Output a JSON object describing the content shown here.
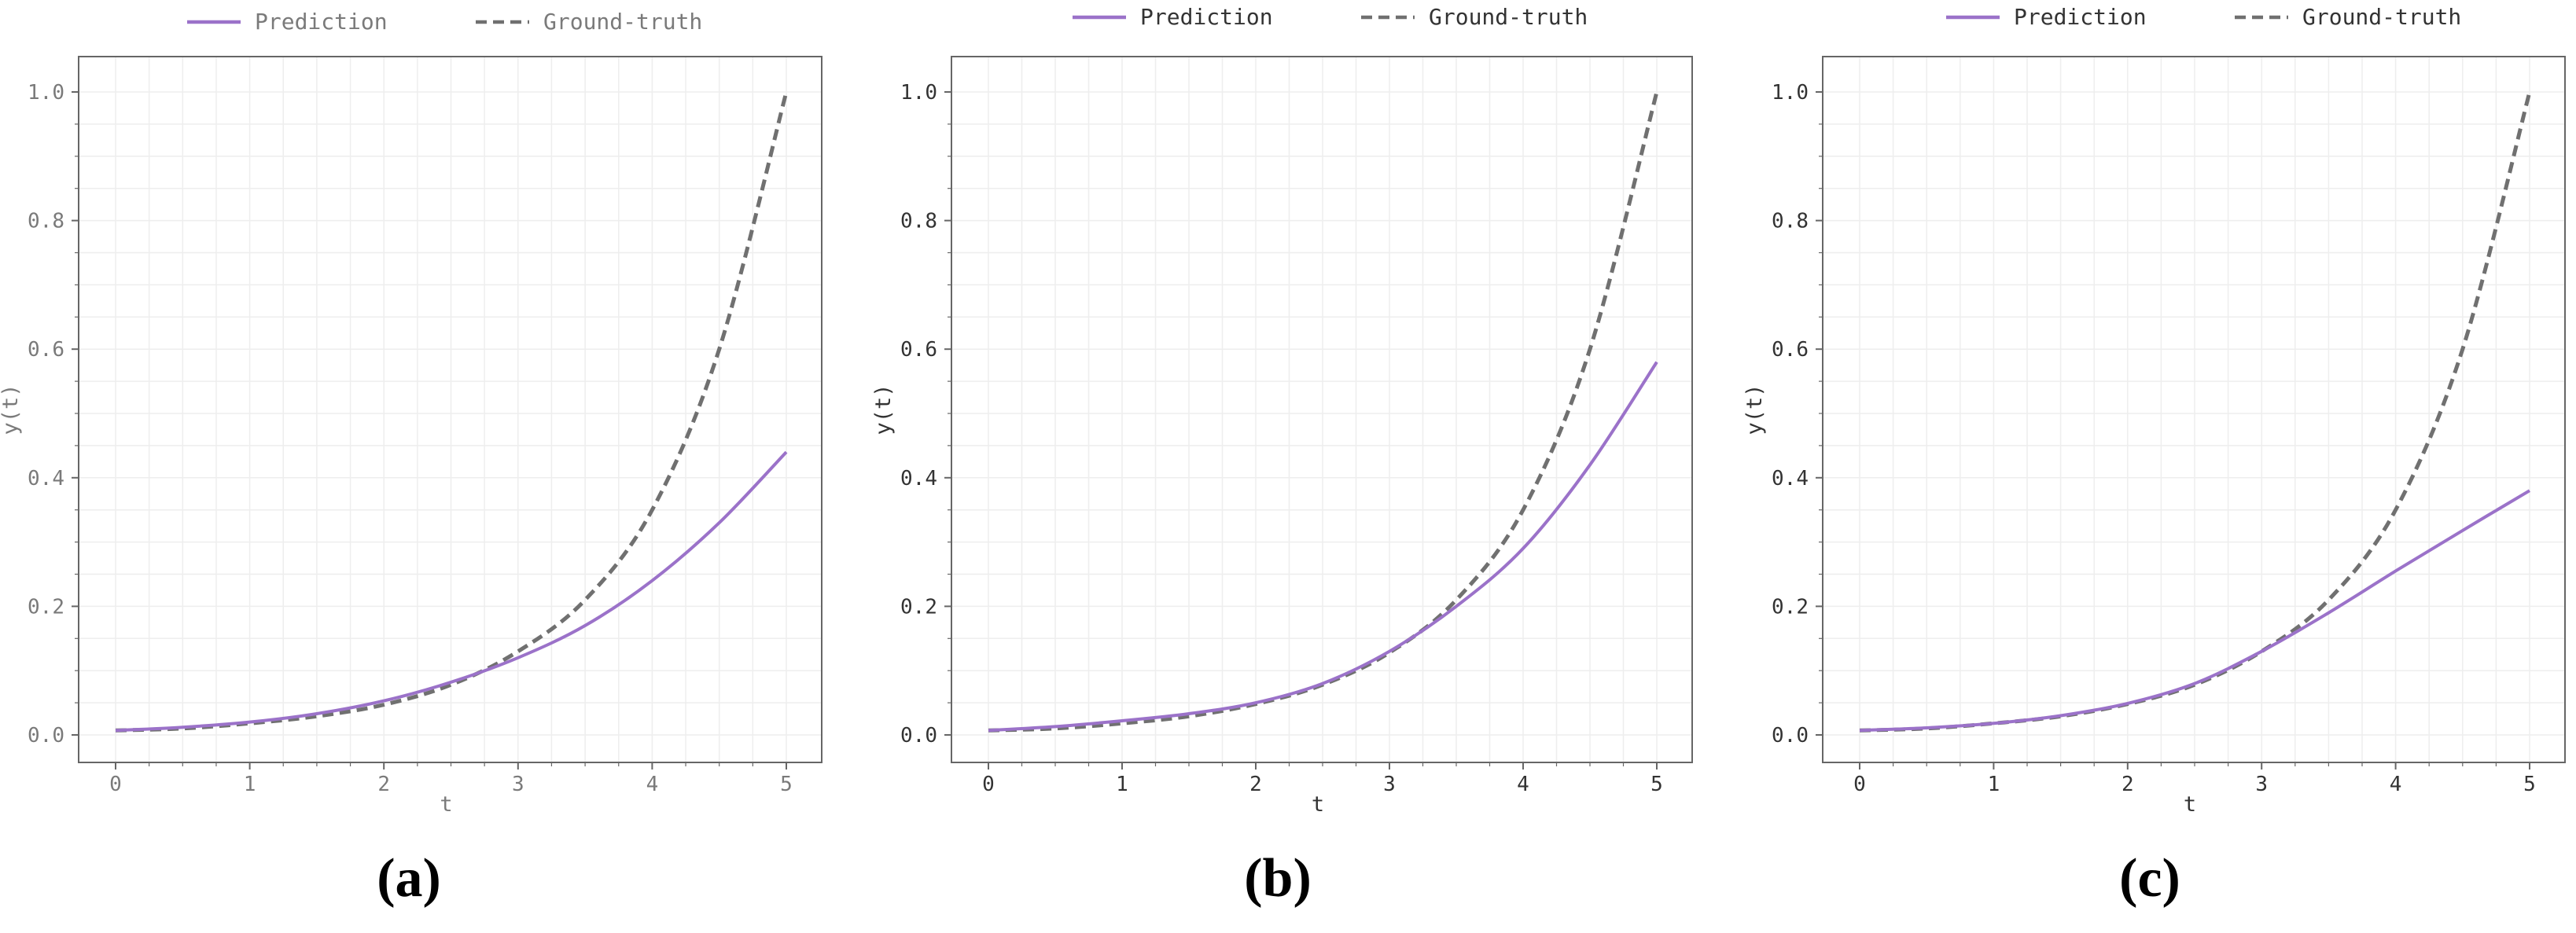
{
  "colors": {
    "prediction": "#9b72c9",
    "ground_truth": "#707070",
    "grid": "#eeeeee",
    "frame": "#666666"
  },
  "chart_data": [
    {
      "type": "line",
      "caption": "(a)",
      "xlabel": "t",
      "ylabel": "y(t)",
      "xlim": [
        0,
        5
      ],
      "ylim": [
        0,
        1.0
      ],
      "xticks": [
        "0",
        "1",
        "2",
        "3",
        "4",
        "5"
      ],
      "yticks": [
        "0.0",
        "0.2",
        "0.4",
        "0.6",
        "0.8",
        "1.0"
      ],
      "grid": true,
      "legend_position": "top",
      "x": [
        0,
        0.5,
        1,
        1.5,
        2,
        2.5,
        3,
        3.5,
        4,
        4.5,
        5
      ],
      "series": [
        {
          "name": "Prediction",
          "style": "solid",
          "values": [
            0.007,
            0.012,
            0.02,
            0.033,
            0.053,
            0.082,
            0.12,
            0.17,
            0.24,
            0.33,
            0.44
          ]
        },
        {
          "name": "Ground-truth",
          "style": "dashed",
          "values": [
            0.007,
            0.01,
            0.018,
            0.029,
            0.047,
            0.078,
            0.13,
            0.21,
            0.35,
            0.6,
            1.0
          ]
        }
      ]
    },
    {
      "type": "line",
      "caption": "(b)",
      "xlabel": "t",
      "ylabel": "y(t)",
      "xlim": [
        0,
        5
      ],
      "ylim": [
        0,
        1.0
      ],
      "xticks": [
        "0",
        "1",
        "2",
        "3",
        "4",
        "5"
      ],
      "yticks": [
        "0.0",
        "0.2",
        "0.4",
        "0.6",
        "0.8",
        "1.0"
      ],
      "grid": true,
      "legend_position": "top",
      "x": [
        0,
        0.5,
        1,
        1.5,
        2,
        2.5,
        3,
        3.5,
        4,
        4.5,
        5
      ],
      "series": [
        {
          "name": "Prediction",
          "style": "solid",
          "values": [
            0.007,
            0.013,
            0.022,
            0.033,
            0.05,
            0.08,
            0.13,
            0.2,
            0.29,
            0.42,
            0.58
          ]
        },
        {
          "name": "Ground-truth",
          "style": "dashed",
          "values": [
            0.007,
            0.01,
            0.018,
            0.029,
            0.048,
            0.078,
            0.128,
            0.21,
            0.35,
            0.6,
            1.0
          ]
        }
      ]
    },
    {
      "type": "line",
      "caption": "(c)",
      "xlabel": "t",
      "ylabel": "y(t)",
      "xlim": [
        0,
        5
      ],
      "ylim": [
        0,
        1.0
      ],
      "xticks": [
        "0",
        "1",
        "2",
        "3",
        "4",
        "5"
      ],
      "yticks": [
        "0.0",
        "0.2",
        "0.4",
        "0.6",
        "0.8",
        "1.0"
      ],
      "grid": true,
      "legend_position": "top",
      "x": [
        0,
        0.5,
        1,
        1.5,
        2,
        2.5,
        3,
        3.5,
        4,
        4.5,
        5
      ],
      "series": [
        {
          "name": "Prediction",
          "style": "solid",
          "values": [
            0.007,
            0.011,
            0.018,
            0.03,
            0.049,
            0.08,
            0.13,
            0.19,
            0.255,
            0.318,
            0.38
          ]
        },
        {
          "name": "Ground-truth",
          "style": "dashed",
          "values": [
            0.007,
            0.01,
            0.018,
            0.029,
            0.048,
            0.078,
            0.13,
            0.21,
            0.35,
            0.6,
            1.0
          ]
        }
      ]
    }
  ]
}
